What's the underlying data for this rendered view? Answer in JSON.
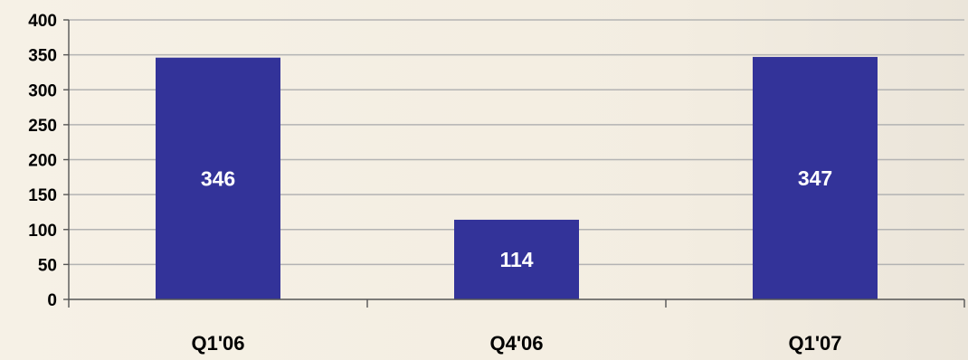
{
  "chart_data": {
    "type": "bar",
    "categories": [
      "Q1'06",
      "Q4'06",
      "Q1'07"
    ],
    "values": [
      346,
      114,
      347
    ],
    "data_labels": [
      "346",
      "114",
      "347"
    ],
    "title": "",
    "xlabel": "",
    "ylabel": "",
    "ylim": [
      0,
      400
    ],
    "yticks": [
      0,
      50,
      100,
      150,
      200,
      250,
      300,
      350,
      400
    ],
    "ytick_labels": [
      "0",
      "50",
      "100",
      "150",
      "200",
      "250",
      "300",
      "350",
      "400"
    ],
    "grid": true,
    "legend": "none",
    "colors": {
      "bar": "#333399",
      "gridline": "#b3b3b3",
      "axis": "#555555",
      "data_label": "#ffffff"
    }
  }
}
